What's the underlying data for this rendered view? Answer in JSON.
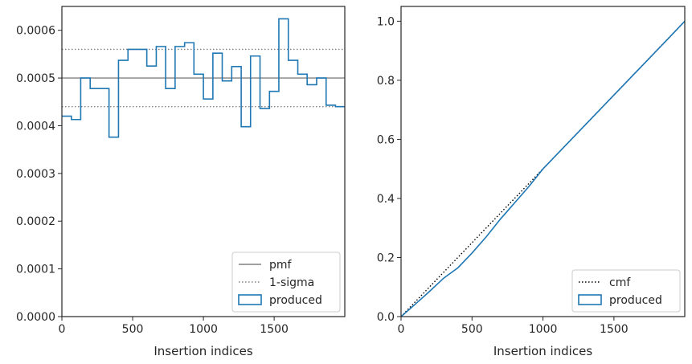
{
  "chart_data": [
    {
      "type": "line",
      "drawstyle": "steps-post",
      "xlabel": "Insertion indices",
      "ylabel": "",
      "xlim": [
        0,
        1999
      ],
      "ylim": [
        0,
        0.00065
      ],
      "x_ticks": [
        0,
        500,
        1000,
        1500
      ],
      "x_tick_labels": [
        "0",
        "500",
        "1000",
        "1500"
      ],
      "y_ticks": [
        0,
        0.0001,
        0.0002,
        0.0003,
        0.0004,
        0.0005,
        0.0006
      ],
      "y_tick_labels": [
        "0.0000",
        "0.0001",
        "0.0002",
        "0.0003",
        "0.0004",
        "0.0005",
        "0.0006"
      ],
      "grid": false,
      "legend_position": "lower-right",
      "reference_lines": [
        {
          "name": "pmf",
          "y": 0.0005,
          "style": "solid",
          "color": "#808080"
        },
        {
          "name": "1-sigma",
          "y": 0.00056,
          "style": "dotted",
          "color": "#808080"
        },
        {
          "name": "1-sigma",
          "y": 0.00044,
          "style": "dotted",
          "color": "#808080"
        }
      ],
      "series": [
        {
          "name": "produced",
          "color": "#1f77b4",
          "bin_edges": [
            0,
            67,
            133,
            200,
            267,
            333,
            400,
            467,
            533,
            600,
            667,
            733,
            800,
            867,
            933,
            1000,
            1067,
            1133,
            1200,
            1267,
            1333,
            1400,
            1467,
            1533,
            1600,
            1667,
            1733,
            1800,
            1867,
            1933,
            1999
          ],
          "values": [
            0.00042,
            0.000413,
            0.0005,
            0.000478,
            0.000478,
            0.000376,
            0.000537,
            0.00056,
            0.00056,
            0.000525,
            0.000566,
            0.000478,
            0.000566,
            0.000574,
            0.000508,
            0.000456,
            0.000552,
            0.000494,
            0.000524,
            0.000398,
            0.000546,
            0.000436,
            0.000472,
            0.000624,
            0.000537,
            0.000508,
            0.000486,
            0.0005,
            0.000443,
            0.00044
          ]
        }
      ],
      "legend": [
        "pmf",
        "1-sigma",
        "produced"
      ]
    },
    {
      "type": "line",
      "xlabel": "Insertion indices",
      "ylabel": "",
      "xlim": [
        0,
        1999
      ],
      "ylim": [
        0,
        1.05
      ],
      "x_ticks": [
        0,
        500,
        1000,
        1500
      ],
      "x_tick_labels": [
        "0",
        "500",
        "1000",
        "1500"
      ],
      "y_ticks": [
        0,
        0.2,
        0.4,
        0.6,
        0.8,
        1.0
      ],
      "y_tick_labels": [
        "0.0",
        "0.2",
        "0.4",
        "0.6",
        "0.8",
        "1.0"
      ],
      "grid": false,
      "legend_position": "lower-right",
      "series": [
        {
          "name": "cmf",
          "style": "dotted",
          "color": "#000000",
          "x": [
            0,
            1999
          ],
          "y": [
            0,
            1.0
          ]
        },
        {
          "name": "produced",
          "color": "#1f77b4",
          "x": [
            0,
            100,
            200,
            300,
            400,
            500,
            600,
            700,
            800,
            900,
            1000,
            1100,
            1200,
            1300,
            1400,
            1500,
            1600,
            1700,
            1800,
            1900,
            1999
          ],
          "y": [
            0,
            0.042,
            0.085,
            0.13,
            0.165,
            0.215,
            0.27,
            0.33,
            0.385,
            0.44,
            0.5,
            0.55,
            0.6,
            0.65,
            0.7,
            0.75,
            0.8,
            0.85,
            0.9,
            0.95,
            1.0
          ]
        }
      ],
      "legend": [
        "cmf",
        "produced"
      ]
    }
  ]
}
